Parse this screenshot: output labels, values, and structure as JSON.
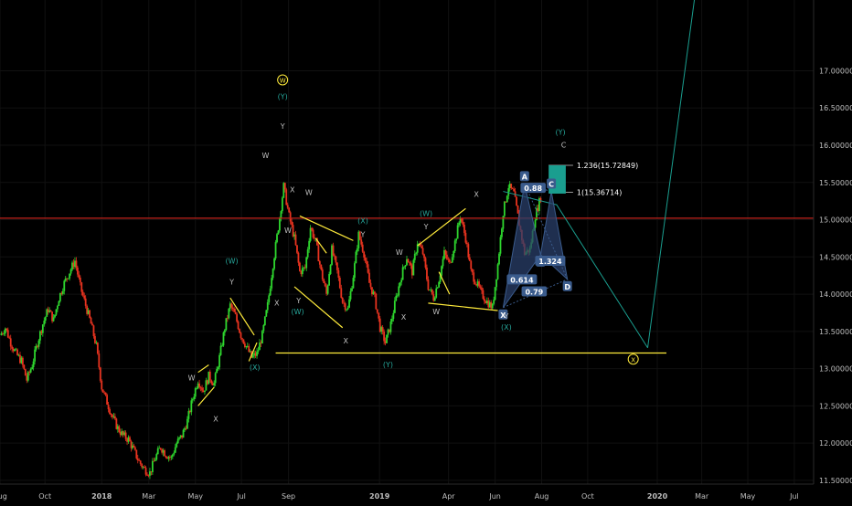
{
  "chart_data": {
    "type": "candlestick",
    "title": "",
    "colors": {
      "background": "#000000",
      "up": "#2ed62e",
      "down": "#e8331f",
      "axis_text": "#bfbfbf",
      "grid": "#111111",
      "hline_red": "#c0221a",
      "support_yellow": "#ffeb3b",
      "wave_label_teal": "#26a69a",
      "pattern_fill": "#2a3f6a",
      "pattern_node": "#3a5b8c",
      "target_box": "#1a9e8f"
    },
    "x_axis": {
      "ticks": [
        {
          "label": "Aug",
          "t": 0
        },
        {
          "label": "Oct",
          "t": 8.4
        },
        {
          "label": "2018",
          "t": 19.0
        },
        {
          "label": "Mar",
          "t": 27.8
        },
        {
          "label": "May",
          "t": 36.5
        },
        {
          "label": "Jul",
          "t": 45.1
        },
        {
          "label": "Sep",
          "t": 53.9
        },
        {
          "label": "2019",
          "t": 70.9
        },
        {
          "label": "Apr",
          "t": 83.8
        },
        {
          "label": "Jun",
          "t": 92.5
        },
        {
          "label": "Aug",
          "t": 101.2
        },
        {
          "label": "Oct",
          "t": 109.8
        },
        {
          "label": "2020",
          "t": 122.8
        },
        {
          "label": "Mar",
          "t": 131.1
        },
        {
          "label": "May",
          "t": 139.7
        },
        {
          "label": "Jul",
          "t": 148.4
        }
      ],
      "range": [
        0,
        152
      ]
    },
    "y_axis": {
      "ticks": [
        "11.50000",
        "12.00000",
        "12.50000",
        "13.00000",
        "13.50000",
        "14.00000",
        "14.50000",
        "15.00000",
        "15.50000",
        "16.00000",
        "16.50000",
        "17.00000"
      ],
      "range": [
        11.45,
        17.95
      ]
    },
    "price_path": [
      [
        0,
        13.45
      ],
      [
        1,
        13.55
      ],
      [
        2,
        13.35
      ],
      [
        3,
        13.2
      ],
      [
        4,
        13.1
      ],
      [
        5,
        12.85
      ],
      [
        6,
        13.05
      ],
      [
        7,
        13.35
      ],
      [
        8,
        13.6
      ],
      [
        9,
        13.8
      ],
      [
        10,
        13.65
      ],
      [
        11,
        13.95
      ],
      [
        12,
        14.15
      ],
      [
        13,
        14.3
      ],
      [
        14,
        14.45
      ],
      [
        15,
        14.1
      ],
      [
        16,
        13.85
      ],
      [
        17,
        13.6
      ],
      [
        18,
        13.3
      ],
      [
        19,
        12.75
      ],
      [
        20,
        12.55
      ],
      [
        21,
        12.35
      ],
      [
        22,
        12.2
      ],
      [
        23,
        12.1
      ],
      [
        24,
        12.05
      ],
      [
        25,
        11.9
      ],
      [
        26,
        11.75
      ],
      [
        27,
        11.65
      ],
      [
        28,
        11.6
      ],
      [
        29,
        11.8
      ],
      [
        30,
        11.95
      ],
      [
        31,
        11.85
      ],
      [
        32,
        11.8
      ],
      [
        33,
        12.0
      ],
      [
        34,
        12.1
      ],
      [
        35,
        12.3
      ],
      [
        36,
        12.6
      ],
      [
        37,
        12.85
      ],
      [
        38,
        12.7
      ],
      [
        39,
        12.9
      ],
      [
        40,
        12.8
      ],
      [
        41,
        13.15
      ],
      [
        42,
        13.55
      ],
      [
        43,
        13.85
      ],
      [
        44,
        13.7
      ],
      [
        45,
        13.45
      ],
      [
        46,
        13.3
      ],
      [
        47,
        13.15
      ],
      [
        48,
        13.2
      ],
      [
        49,
        13.45
      ],
      [
        50,
        13.85
      ],
      [
        51,
        14.4
      ],
      [
        52,
        14.9
      ],
      [
        53,
        15.45
      ],
      [
        54,
        15.05
      ],
      [
        55,
        14.75
      ],
      [
        56,
        14.3
      ],
      [
        57,
        14.35
      ],
      [
        58,
        14.9
      ],
      [
        59,
        14.7
      ],
      [
        60,
        14.3
      ],
      [
        61,
        14.0
      ],
      [
        62,
        14.6
      ],
      [
        63,
        14.3
      ],
      [
        64,
        13.9
      ],
      [
        65,
        13.8
      ],
      [
        66,
        14.25
      ],
      [
        67,
        14.8
      ],
      [
        68,
        14.55
      ],
      [
        69,
        14.15
      ],
      [
        70,
        13.95
      ],
      [
        71,
        13.55
      ],
      [
        72,
        13.35
      ],
      [
        73,
        13.6
      ],
      [
        74,
        13.95
      ],
      [
        75,
        14.25
      ],
      [
        76,
        14.5
      ],
      [
        77,
        14.3
      ],
      [
        78,
        14.7
      ],
      [
        79,
        14.55
      ],
      [
        80,
        14.1
      ],
      [
        81,
        13.95
      ],
      [
        82,
        14.2
      ],
      [
        83,
        14.55
      ],
      [
        84,
        14.4
      ],
      [
        85,
        14.7
      ],
      [
        86,
        15.05
      ],
      [
        87,
        14.75
      ],
      [
        88,
        14.3
      ],
      [
        89,
        14.15
      ],
      [
        90,
        14.0
      ],
      [
        91,
        13.9
      ],
      [
        92,
        13.82
      ],
      [
        93,
        14.4
      ],
      [
        94,
        15.1
      ],
      [
        95,
        15.45
      ],
      [
        96,
        15.35
      ],
      [
        97,
        14.95
      ],
      [
        98,
        14.55
      ],
      [
        99,
        14.6
      ],
      [
        100,
        15.05
      ],
      [
        101,
        15.3
      ]
    ],
    "horizontal_lines": [
      {
        "y": 15.02,
        "color_key": "hline_red",
        "x_from": 0,
        "x_to": 152
      },
      {
        "y": 13.21,
        "color_key": "support_yellow",
        "x_from": 51.5,
        "x_to": 124.5
      }
    ],
    "trend_lines": [
      {
        "points": [
          [
            94,
            15.38
          ],
          [
            104,
            15.2
          ],
          [
            121,
            13.28
          ]
        ]
      },
      {
        "points": [
          [
            121,
            13.28
          ],
          [
            130,
            18.1
          ]
        ]
      }
    ],
    "yellow_segments": [
      [
        [
          37,
          12.95
        ],
        [
          39,
          13.05
        ]
      ],
      [
        [
          37,
          12.5
        ],
        [
          40,
          12.75
        ]
      ],
      [
        [
          43,
          13.95
        ],
        [
          47.5,
          13.45
        ]
      ],
      [
        [
          46.5,
          13.1
        ],
        [
          48,
          13.35
        ]
      ],
      [
        [
          56,
          15.05
        ],
        [
          66,
          14.72
        ]
      ],
      [
        [
          55,
          14.1
        ],
        [
          64,
          13.55
        ]
      ],
      [
        [
          59,
          14.75
        ],
        [
          61,
          14.55
        ]
      ],
      [
        [
          78,
          14.65
        ],
        [
          87,
          15.15
        ]
      ],
      [
        [
          80,
          13.88
        ],
        [
          93,
          13.78
        ]
      ],
      [
        [
          82,
          14.3
        ],
        [
          84,
          14.0
        ]
      ]
    ],
    "target_box": {
      "x0": 102.5,
      "x1": 105.7,
      "y0": 15.35,
      "y1": 15.73
    },
    "pattern": {
      "points": {
        "X": [
          94,
          13.82
        ],
        "A": [
          98,
          15.48
        ],
        "B": [
          101,
          14.53
        ],
        "C": [
          103,
          15.38
        ],
        "D": [
          106,
          14.2
        ]
      },
      "ratios": [
        {
          "label": "0.88",
          "x": 99.6,
          "y": 15.41
        },
        {
          "label": "0.614",
          "x": 97.5,
          "y": 14.18
        },
        {
          "label": "1.324",
          "x": 102.8,
          "y": 14.43
        },
        {
          "label": "0.79",
          "x": 99.8,
          "y": 14.02
        }
      ]
    },
    "fib_levels": [
      {
        "label": "1.236(15.72849)",
        "y": 15.73
      },
      {
        "label": "1(15.36714)",
        "y": 15.37
      }
    ],
    "wave_labels": [
      {
        "text": "W",
        "t": 52.8,
        "p": 16.84,
        "circled": true,
        "color_key": "support_yellow"
      },
      {
        "text": "(Y)",
        "t": 52.8,
        "p": 16.62,
        "color_key": "wave_label_teal"
      },
      {
        "text": "Y",
        "t": 52.8,
        "p": 16.22,
        "color_key": "axis_text"
      },
      {
        "text": "W",
        "t": 49.6,
        "p": 15.83,
        "color_key": "axis_text"
      },
      {
        "text": "X",
        "t": 54.6,
        "p": 15.37,
        "color_key": "axis_text"
      },
      {
        "text": "W",
        "t": 57.7,
        "p": 15.33,
        "color_key": "axis_text"
      },
      {
        "text": "W",
        "t": 53.8,
        "p": 14.82,
        "color_key": "axis_text"
      },
      {
        "text": "X",
        "t": 51.7,
        "p": 13.85,
        "color_key": "axis_text"
      },
      {
        "text": "Y",
        "t": 55.8,
        "p": 13.88,
        "color_key": "axis_text"
      },
      {
        "text": "(W)",
        "t": 55.6,
        "p": 13.73,
        "color_key": "wave_label_teal"
      },
      {
        "text": "X",
        "t": 64.6,
        "p": 13.34,
        "color_key": "axis_text"
      },
      {
        "text": "(X)",
        "t": 67.8,
        "p": 14.95,
        "color_key": "wave_label_teal"
      },
      {
        "text": "Y",
        "t": 67.8,
        "p": 14.77,
        "color_key": "axis_text"
      },
      {
        "text": "(W)",
        "t": 43.3,
        "p": 14.41,
        "color_key": "wave_label_teal"
      },
      {
        "text": "Y",
        "t": 43.3,
        "p": 14.13,
        "color_key": "axis_text"
      },
      {
        "text": "(X)",
        "t": 47.6,
        "p": 12.98,
        "color_key": "wave_label_teal"
      },
      {
        "text": "W",
        "t": 35.8,
        "p": 12.84,
        "color_key": "axis_text"
      },
      {
        "text": "X",
        "t": 40.3,
        "p": 12.29,
        "color_key": "axis_text"
      },
      {
        "text": "(Y)",
        "t": 72.5,
        "p": 13.02,
        "color_key": "wave_label_teal"
      },
      {
        "text": "X",
        "t": 75.4,
        "p": 13.66,
        "color_key": "axis_text"
      },
      {
        "text": "W",
        "t": 74.6,
        "p": 14.53,
        "color_key": "axis_text"
      },
      {
        "text": "(W)",
        "t": 79.6,
        "p": 15.05,
        "color_key": "wave_label_teal"
      },
      {
        "text": "Y",
        "t": 79.6,
        "p": 14.87,
        "color_key": "axis_text"
      },
      {
        "text": "W",
        "t": 81.5,
        "p": 13.73,
        "color_key": "axis_text"
      },
      {
        "text": "X",
        "t": 89.0,
        "p": 15.31,
        "color_key": "axis_text"
      },
      {
        "text": "Y",
        "t": 94.6,
        "p": 13.67,
        "color_key": "axis_text"
      },
      {
        "text": "(X)",
        "t": 94.6,
        "p": 13.52,
        "color_key": "wave_label_teal"
      },
      {
        "text": "(Y)",
        "t": 104.7,
        "p": 16.14,
        "color_key": "wave_label_teal"
      },
      {
        "text": "C",
        "t": 105.3,
        "p": 15.97,
        "color_key": "axis_text"
      },
      {
        "text": "X",
        "t": 118.3,
        "p": 13.09,
        "circled": true,
        "color_key": "support_yellow"
      }
    ]
  }
}
